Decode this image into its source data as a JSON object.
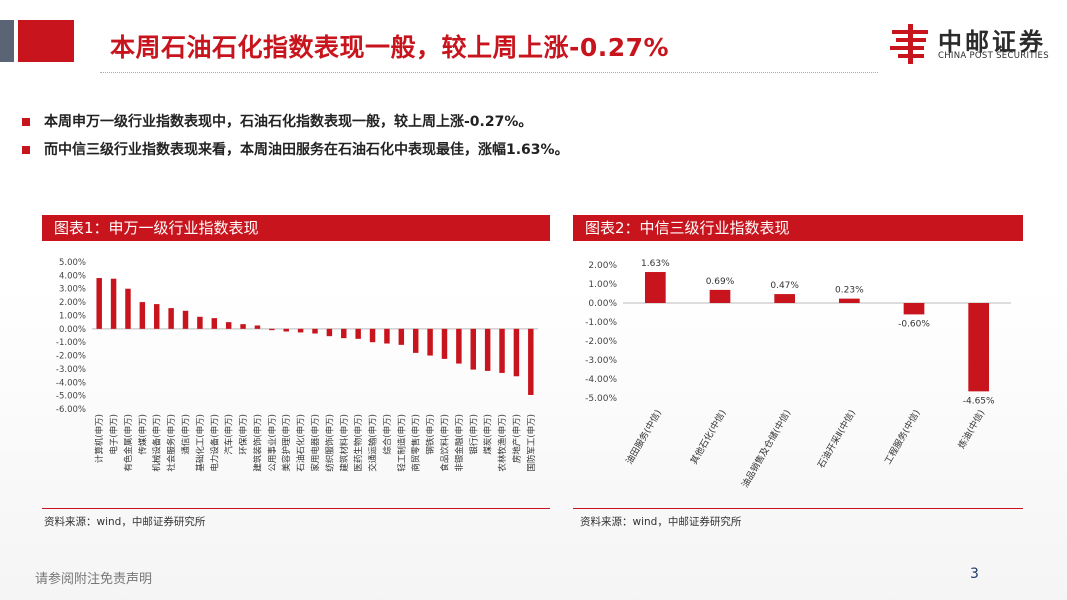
{
  "title": "本周石油石化指数表现一般，较上周上涨-0.27%",
  "logo": {
    "cn": "中邮证券",
    "en": "CHINA POST SECURITIES"
  },
  "bullets": [
    "本周申万一级行业指数表现中，石油石化指数表现一般，较上周上涨-0.27%。",
    "而中信三级行业指数表现来看，本周油田服务在石油石化中表现最佳，涨幅1.63%。"
  ],
  "colors": {
    "accent": "#c8151d",
    "dark": "#5a6475"
  },
  "chart_data": [
    {
      "type": "bar",
      "title": "图表1：申万一级行业指数表现",
      "source": "资料来源：wind，中邮证券研究所",
      "ylim": [
        -6,
        5
      ],
      "yticks": [
        5,
        4,
        3,
        2,
        1,
        0,
        -1,
        -2,
        -3,
        -4,
        -5,
        -6
      ],
      "ytick_labels": [
        "5.00%",
        "4.00%",
        "3.00%",
        "2.00%",
        "1.00%",
        "0.00%",
        "-1.00%",
        "-2.00%",
        "-3.00%",
        "-4.00%",
        "-5.00%",
        "-6.00%"
      ],
      "categories": [
        "计算机(申万)",
        "电子(申万)",
        "有色金属(申万)",
        "传媒(申万)",
        "机械设备(申万)",
        "社会服务(申万)",
        "通信(申万)",
        "基础化工(申万)",
        "电力设备(申万)",
        "汽车(申万)",
        "环保(申万)",
        "建筑装饰(申万)",
        "公用事业(申万)",
        "美容护理(申万)",
        "石油石化(申万)",
        "家用电器(申万)",
        "纺织服饰(申万)",
        "建筑材料(申万)",
        "医药生物(申万)",
        "交通运输(申万)",
        "综合(申万)",
        "轻工制造(申万)",
        "商贸零售(申万)",
        "钢铁(申万)",
        "食品饮料(申万)",
        "非银金融(申万)",
        "银行(申万)",
        "煤炭(申万)",
        "农林牧渔(申万)",
        "房地产(申万)",
        "国防军工(申万)"
      ],
      "values": [
        3.8,
        3.75,
        3.0,
        2.0,
        1.85,
        1.55,
        1.35,
        0.9,
        0.8,
        0.5,
        0.35,
        0.25,
        -0.1,
        -0.2,
        -0.27,
        -0.35,
        -0.55,
        -0.7,
        -0.75,
        -1.0,
        -1.1,
        -1.2,
        -1.8,
        -2.0,
        -2.25,
        -2.6,
        -3.05,
        -3.15,
        -3.3,
        -3.55,
        -4.95
      ]
    },
    {
      "type": "bar",
      "title": "图表2：中信三级行业指数表现",
      "source": "资料来源：wind，中邮证券研究所",
      "ylim": [
        -5,
        2
      ],
      "yticks": [
        2,
        1,
        0,
        -1,
        -2,
        -3,
        -4,
        -5
      ],
      "ytick_labels": [
        "2.00%",
        "1.00%",
        "0.00%",
        "-1.00%",
        "-2.00%",
        "-3.00%",
        "-4.00%",
        "-5.00%"
      ],
      "categories": [
        "油田服务(中信)",
        "其他石化(中信)",
        "油品销售及仓储(中信)",
        "石油开采Ⅱ(中信)",
        "工程服务(中信)",
        "炼油(中信)"
      ],
      "values": [
        1.63,
        0.69,
        0.47,
        0.23,
        -0.6,
        -4.65
      ],
      "data_labels": [
        "1.63%",
        "0.69%",
        "0.47%",
        "0.23%",
        "-0.60%",
        "-4.65%"
      ]
    }
  ],
  "footer": {
    "disclaimer": "请参阅附注免责声明",
    "page": "3"
  }
}
